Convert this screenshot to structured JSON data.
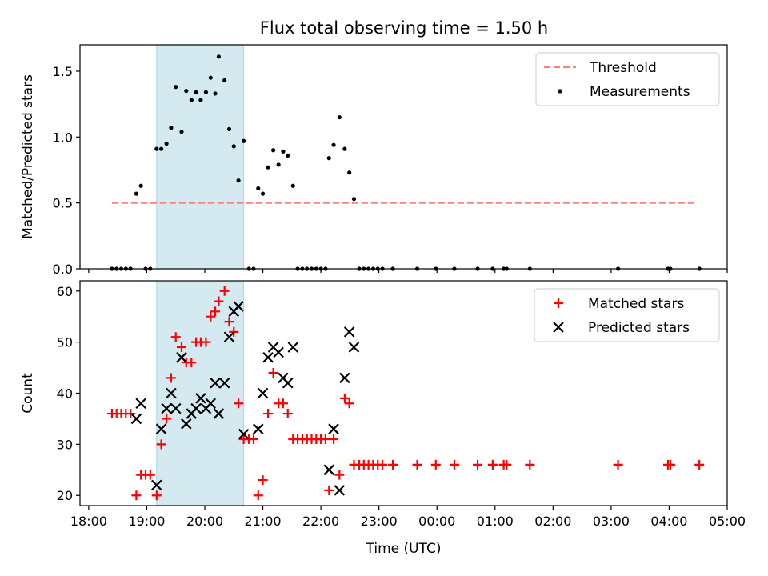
{
  "title": "Flux total observing time = 1.50 h",
  "chart_data": [
    {
      "type": "scatter",
      "ylabel": "Matched/Predicted stars",
      "ylim": [
        0,
        1.7
      ],
      "yticks": [
        0.0,
        0.5,
        1.0,
        1.5
      ],
      "ytick_labels": [
        "0.0",
        "0.5",
        "1.0",
        "1.5"
      ],
      "xlim": [
        17.85,
        29.0
      ],
      "xticks": [
        18,
        19,
        20,
        21,
        22,
        23,
        24,
        25,
        26,
        27,
        28,
        29
      ],
      "highlight_span": [
        19.17,
        20.67
      ],
      "highlight_color": "#d4eaf0",
      "legend_position": "upper right",
      "legend": [
        {
          "label": "Threshold",
          "color": "#ff7f7f",
          "marker": "dashed-line"
        },
        {
          "label": "Measurements",
          "color": "#000000",
          "marker": "dot"
        }
      ],
      "threshold": {
        "name": "Threshold",
        "y": 0.5,
        "x_start": 18.4,
        "x_end": 28.5,
        "color": "#ff7f7f"
      },
      "series": [
        {
          "name": "Measurements",
          "color": "#000000",
          "points": [
            [
              18.4,
              0
            ],
            [
              18.48,
              0
            ],
            [
              18.56,
              0
            ],
            [
              18.64,
              0
            ],
            [
              18.72,
              0
            ],
            [
              18.82,
              0.57
            ],
            [
              18.9,
              0.63
            ],
            [
              18.98,
              0
            ],
            [
              19.06,
              0
            ],
            [
              19.17,
              0.91
            ],
            [
              19.25,
              0.91
            ],
            [
              19.34,
              0.95
            ],
            [
              19.42,
              1.07
            ],
            [
              19.5,
              1.38
            ],
            [
              19.6,
              1.04
            ],
            [
              19.68,
              1.35
            ],
            [
              19.77,
              1.28
            ],
            [
              19.85,
              1.34
            ],
            [
              19.93,
              1.28
            ],
            [
              20.02,
              1.34
            ],
            [
              20.1,
              1.45
            ],
            [
              20.18,
              1.33
            ],
            [
              20.24,
              1.61
            ],
            [
              20.34,
              1.43
            ],
            [
              20.42,
              1.06
            ],
            [
              20.5,
              0.93
            ],
            [
              20.58,
              0.67
            ],
            [
              20.67,
              0.97
            ],
            [
              20.76,
              0
            ],
            [
              20.84,
              0
            ],
            [
              20.92,
              0.61
            ],
            [
              21.0,
              0.57
            ],
            [
              21.09,
              0.77
            ],
            [
              21.18,
              0.9
            ],
            [
              21.27,
              0.79
            ],
            [
              21.35,
              0.89
            ],
            [
              21.43,
              0.86
            ],
            [
              21.52,
              0.63
            ],
            [
              21.6,
              0
            ],
            [
              21.68,
              0
            ],
            [
              21.76,
              0
            ],
            [
              21.84,
              0
            ],
            [
              21.92,
              0
            ],
            [
              22.0,
              0
            ],
            [
              22.08,
              0
            ],
            [
              22.14,
              0.84
            ],
            [
              22.22,
              0.94
            ],
            [
              22.32,
              1.15
            ],
            [
              22.41,
              0.91
            ],
            [
              22.49,
              0.73
            ],
            [
              22.57,
              0.53
            ],
            [
              22.66,
              0
            ],
            [
              22.74,
              0
            ],
            [
              22.82,
              0
            ],
            [
              22.9,
              0
            ],
            [
              22.98,
              0
            ],
            [
              23.06,
              0
            ],
            [
              23.24,
              0
            ],
            [
              23.66,
              0
            ],
            [
              23.98,
              0
            ],
            [
              24.3,
              0
            ],
            [
              24.7,
              0
            ],
            [
              24.96,
              0
            ],
            [
              25.15,
              0
            ],
            [
              25.2,
              0
            ],
            [
              25.6,
              0
            ],
            [
              27.12,
              0
            ],
            [
              27.98,
              0
            ],
            [
              28.02,
              0
            ],
            [
              28.52,
              0
            ]
          ]
        }
      ]
    },
    {
      "type": "scatter",
      "xlabel": "Time (UTC)",
      "ylabel": "Count",
      "ylim": [
        18,
        62
      ],
      "yticks": [
        20,
        30,
        40,
        50,
        60
      ],
      "ytick_labels": [
        "20",
        "30",
        "40",
        "50",
        "60"
      ],
      "xlim": [
        17.85,
        29.0
      ],
      "xticks": [
        18,
        19,
        20,
        21,
        22,
        23,
        24,
        25,
        26,
        27,
        28,
        29
      ],
      "xtick_labels": [
        "18:00",
        "19:00",
        "20:00",
        "21:00",
        "22:00",
        "23:00",
        "00:00",
        "01:00",
        "02:00",
        "03:00",
        "04:00",
        "05:00"
      ],
      "highlight_span": [
        19.17,
        20.67
      ],
      "highlight_color": "#d4eaf0",
      "legend_position": "upper right",
      "legend": [
        {
          "label": "Matched stars",
          "color": "#ff0000",
          "marker": "plus"
        },
        {
          "label": "Predicted stars",
          "color": "#000000",
          "marker": "x"
        }
      ],
      "series": [
        {
          "name": "Matched stars",
          "color": "#ff0000",
          "marker": "plus",
          "points": [
            [
              18.4,
              36
            ],
            [
              18.48,
              36
            ],
            [
              18.56,
              36
            ],
            [
              18.64,
              36
            ],
            [
              18.72,
              36
            ],
            [
              18.82,
              20
            ],
            [
              18.9,
              24
            ],
            [
              18.98,
              24
            ],
            [
              19.06,
              24
            ],
            [
              19.17,
              20
            ],
            [
              19.25,
              30
            ],
            [
              19.34,
              35
            ],
            [
              19.42,
              43
            ],
            [
              19.5,
              51
            ],
            [
              19.6,
              49
            ],
            [
              19.68,
              46
            ],
            [
              19.77,
              46
            ],
            [
              19.85,
              50
            ],
            [
              19.93,
              50
            ],
            [
              20.02,
              50
            ],
            [
              20.1,
              55
            ],
            [
              20.18,
              56
            ],
            [
              20.24,
              58
            ],
            [
              20.34,
              60
            ],
            [
              20.42,
              54
            ],
            [
              20.5,
              52
            ],
            [
              20.58,
              38
            ],
            [
              20.67,
              31
            ],
            [
              20.76,
              31
            ],
            [
              20.84,
              31
            ],
            [
              20.92,
              20
            ],
            [
              21.0,
              23
            ],
            [
              21.09,
              36
            ],
            [
              21.18,
              44
            ],
            [
              21.27,
              38
            ],
            [
              21.35,
              38
            ],
            [
              21.43,
              36
            ],
            [
              21.52,
              31
            ],
            [
              21.6,
              31
            ],
            [
              21.68,
              31
            ],
            [
              21.76,
              31
            ],
            [
              21.84,
              31
            ],
            [
              21.92,
              31
            ],
            [
              22.0,
              31
            ],
            [
              22.08,
              31
            ],
            [
              22.14,
              21
            ],
            [
              22.22,
              31
            ],
            [
              22.32,
              24
            ],
            [
              22.41,
              39
            ],
            [
              22.49,
              38
            ],
            [
              22.57,
              26
            ],
            [
              22.66,
              26
            ],
            [
              22.74,
              26
            ],
            [
              22.82,
              26
            ],
            [
              22.9,
              26
            ],
            [
              22.98,
              26
            ],
            [
              23.06,
              26
            ],
            [
              23.24,
              26
            ],
            [
              23.66,
              26
            ],
            [
              23.98,
              26
            ],
            [
              24.3,
              26
            ],
            [
              24.7,
              26
            ],
            [
              24.96,
              26
            ],
            [
              25.15,
              26
            ],
            [
              25.2,
              26
            ],
            [
              25.6,
              26
            ],
            [
              27.12,
              26
            ],
            [
              27.98,
              26
            ],
            [
              28.02,
              26
            ],
            [
              28.52,
              26
            ]
          ]
        },
        {
          "name": "Predicted stars",
          "color": "#000000",
          "marker": "x",
          "points": [
            [
              18.82,
              35
            ],
            [
              18.9,
              38
            ],
            [
              19.17,
              22
            ],
            [
              19.25,
              33
            ],
            [
              19.34,
              37
            ],
            [
              19.42,
              40
            ],
            [
              19.5,
              37
            ],
            [
              19.6,
              47
            ],
            [
              19.68,
              34
            ],
            [
              19.77,
              36
            ],
            [
              19.85,
              37
            ],
            [
              19.93,
              39
            ],
            [
              20.02,
              37
            ],
            [
              20.1,
              38
            ],
            [
              20.18,
              42
            ],
            [
              20.24,
              36
            ],
            [
              20.34,
              42
            ],
            [
              20.42,
              51
            ],
            [
              20.5,
              56
            ],
            [
              20.58,
              57
            ],
            [
              20.67,
              32
            ],
            [
              20.92,
              33
            ],
            [
              21.0,
              40
            ],
            [
              21.09,
              47
            ],
            [
              21.18,
              49
            ],
            [
              21.27,
              48
            ],
            [
              21.35,
              43
            ],
            [
              21.43,
              42
            ],
            [
              21.52,
              49
            ],
            [
              22.14,
              25
            ],
            [
              22.22,
              33
            ],
            [
              22.32,
              21
            ],
            [
              22.41,
              43
            ],
            [
              22.49,
              52
            ],
            [
              22.57,
              49
            ]
          ]
        }
      ]
    }
  ]
}
